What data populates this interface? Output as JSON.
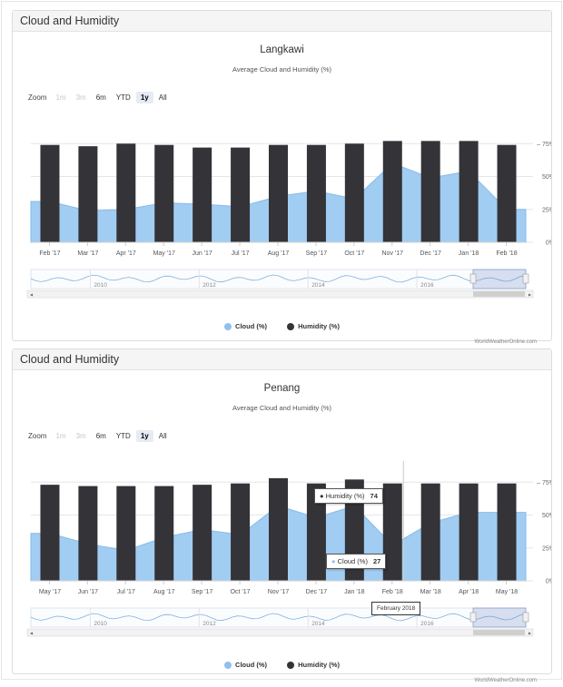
{
  "panels": [
    {
      "heading": "Cloud and Humidity",
      "zoom": {
        "label": "Zoom",
        "buttons": [
          "1m",
          "3m",
          "6m",
          "YTD",
          "1y",
          "All"
        ],
        "disabled": [
          0,
          1
        ],
        "selected": 4
      },
      "legend": {
        "cloud": "Cloud (%)",
        "humidity": "Humidity (%)"
      },
      "credit": "WorldWeatherOnline.com",
      "navigator_years": [
        "2010",
        "2012",
        "2014",
        "2016"
      ]
    },
    {
      "heading": "Cloud and Humidity",
      "zoom": {
        "label": "Zoom",
        "buttons": [
          "1m",
          "3m",
          "6m",
          "YTD",
          "1y",
          "All"
        ],
        "disabled": [
          0,
          1
        ],
        "selected": 4
      },
      "legend": {
        "cloud": "Cloud (%)",
        "humidity": "Humidity (%)"
      },
      "credit": "WorldWeatherOnline.com",
      "navigator_years": [
        "2010",
        "2012",
        "2014",
        "2016"
      ],
      "tooltip": {
        "humidity_label": "Humidity (%)",
        "humidity_value": "74",
        "cloud_label": "Cloud (%)",
        "cloud_value": "27",
        "x_label": "February 2018"
      }
    }
  ],
  "colors": {
    "humidity": "#333338",
    "cloud": "#a2cdf2",
    "cloud_line": "#86bbe9"
  },
  "chart_data": [
    {
      "type": "bar",
      "title": "Langkawi",
      "subtitle": "Average Cloud and Humidity (%)",
      "categories": [
        "Feb '17",
        "Mar '17",
        "Apr '17",
        "May '17",
        "Jun '17",
        "Jul '17",
        "Aug '17",
        "Sep '17",
        "Oct '17",
        "Nov '17",
        "Dec '17",
        "Jan '18",
        "Feb '18"
      ],
      "series": [
        {
          "name": "Humidity (%)",
          "type": "bar",
          "values": [
            74,
            73,
            75,
            74,
            72,
            72,
            74,
            74,
            75,
            77,
            77,
            77,
            74
          ]
        },
        {
          "name": "Cloud (%)",
          "type": "area",
          "values": [
            31,
            24,
            25,
            30,
            29,
            27,
            35,
            39,
            33,
            60,
            49,
            54,
            25
          ]
        }
      ],
      "yaxis_ticks": [
        "0%",
        "25%",
        "50%",
        "75%"
      ],
      "ylim": [
        0,
        80
      ]
    },
    {
      "type": "bar",
      "title": "Penang",
      "subtitle": "Average Cloud and Humidity (%)",
      "categories": [
        "May '17",
        "Jun '17",
        "Jul '17",
        "Aug '17",
        "Sep '17",
        "Oct '17",
        "Nov '17",
        "Dec '17",
        "Jan '18",
        "Feb '18",
        "Mar '18",
        "Apr '18",
        "May '18"
      ],
      "series": [
        {
          "name": "Humidity (%)",
          "type": "bar",
          "values": [
            73,
            72,
            72,
            72,
            73,
            74,
            78,
            74,
            77,
            74,
            74,
            74,
            74
          ]
        },
        {
          "name": "Cloud (%)",
          "type": "area",
          "values": [
            36,
            28,
            23,
            33,
            39,
            35,
            57,
            48,
            57,
            27,
            44,
            52,
            52
          ]
        }
      ],
      "yaxis_ticks": [
        "0%",
        "25%",
        "50%",
        "75%"
      ],
      "ylim": [
        0,
        80
      ]
    }
  ]
}
